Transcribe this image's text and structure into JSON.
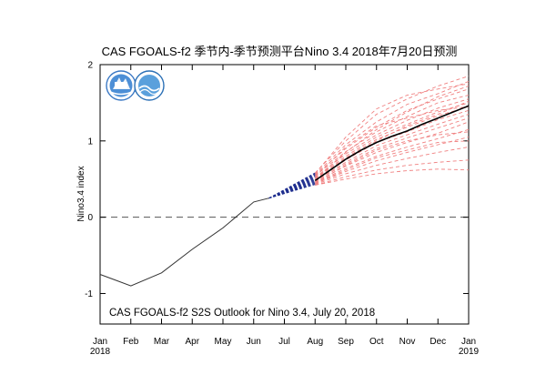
{
  "chart_data": {
    "type": "line",
    "title": "CAS FGOALS-f2 季节内-季节预测平台Nino 3.4 2018年7月20日预测",
    "ylabel": "Nino3.4 index",
    "xlabel": "",
    "annotation": "CAS FGOALS-f2 S2S Outlook for Nino 3.4, July 20, 2018",
    "xlim": [
      0,
      12
    ],
    "ylim": [
      -1.4,
      2
    ],
    "x_ticks": [
      {
        "x": 0,
        "label": "Jan",
        "sublabel": "2018"
      },
      {
        "x": 1,
        "label": "Feb",
        "sublabel": ""
      },
      {
        "x": 2,
        "label": "Mar",
        "sublabel": ""
      },
      {
        "x": 3,
        "label": "Apr",
        "sublabel": ""
      },
      {
        "x": 4,
        "label": "May",
        "sublabel": ""
      },
      {
        "x": 5,
        "label": "Jun",
        "sublabel": ""
      },
      {
        "x": 6,
        "label": "Jul",
        "sublabel": ""
      },
      {
        "x": 7,
        "label": "Aug",
        "sublabel": ""
      },
      {
        "x": 8,
        "label": "Sep",
        "sublabel": ""
      },
      {
        "x": 9,
        "label": "Oct",
        "sublabel": ""
      },
      {
        "x": 10,
        "label": "Nov",
        "sublabel": ""
      },
      {
        "x": 11,
        "label": "Dec",
        "sublabel": ""
      },
      {
        "x": 12,
        "label": "Jan",
        "sublabel": "2019"
      }
    ],
    "y_ticks": [
      2,
      1,
      0,
      -1
    ],
    "reference_line": {
      "y": 0,
      "style": "dashed"
    },
    "colors": {
      "observed": "#333333",
      "ensemble_mean": "#000000",
      "ensemble_member": "#f08080",
      "subseasonal": "#1f2f8f"
    },
    "observed": {
      "x": [
        0,
        1,
        2,
        3,
        4,
        5,
        5.5
      ],
      "y": [
        -0.75,
        -0.9,
        -0.73,
        -0.42,
        -0.14,
        0.2,
        0.25
      ]
    },
    "ensemble_mean": {
      "x": [
        7,
        7.5,
        8,
        8.5,
        9,
        9.5,
        10,
        10.5,
        11,
        11.5,
        12
      ],
      "y": [
        0.48,
        0.62,
        0.76,
        0.88,
        0.98,
        1.06,
        1.13,
        1.22,
        1.3,
        1.38,
        1.46
      ]
    },
    "subseasonal_fan": {
      "x_start": 5.5,
      "y_start": 0.25,
      "x_end": 7.0,
      "y_low": 0.43,
      "y_high": 0.58,
      "members": 12
    },
    "ensemble_members": [
      {
        "x": [
          7,
          8,
          9,
          10,
          11,
          12
        ],
        "y": [
          0.58,
          1.0,
          1.35,
          1.55,
          1.72,
          1.85
        ]
      },
      {
        "x": [
          7,
          8,
          9,
          10,
          11,
          12
        ],
        "y": [
          0.56,
          0.95,
          1.25,
          1.48,
          1.62,
          1.78
        ]
      },
      {
        "x": [
          7,
          8,
          9,
          10,
          11,
          12
        ],
        "y": [
          0.55,
          0.9,
          1.18,
          1.4,
          1.55,
          1.68
        ]
      },
      {
        "x": [
          7,
          8,
          9,
          10,
          11,
          12
        ],
        "y": [
          0.54,
          0.86,
          1.12,
          1.32,
          1.5,
          1.6
        ]
      },
      {
        "x": [
          7,
          8,
          9,
          10,
          11,
          12
        ],
        "y": [
          0.52,
          0.83,
          1.08,
          1.27,
          1.43,
          1.55
        ]
      },
      {
        "x": [
          7,
          8,
          9,
          10,
          11,
          12
        ],
        "y": [
          0.51,
          0.8,
          1.05,
          1.22,
          1.38,
          1.5
        ]
      },
      {
        "x": [
          7,
          8,
          9,
          10,
          11,
          12
        ],
        "y": [
          0.5,
          0.78,
          1.02,
          1.18,
          1.33,
          1.45
        ]
      },
      {
        "x": [
          7,
          8,
          9,
          10,
          11,
          12
        ],
        "y": [
          0.49,
          0.75,
          0.98,
          1.12,
          1.28,
          1.4
        ]
      },
      {
        "x": [
          7,
          8,
          9,
          10,
          11,
          12
        ],
        "y": [
          0.48,
          0.72,
          0.94,
          1.08,
          1.22,
          1.35
        ]
      },
      {
        "x": [
          7,
          8,
          9,
          10,
          11,
          12
        ],
        "y": [
          0.47,
          0.7,
          0.9,
          1.04,
          1.17,
          1.3
        ]
      },
      {
        "x": [
          7,
          8,
          9,
          10,
          11,
          12
        ],
        "y": [
          0.46,
          0.67,
          0.85,
          0.98,
          1.1,
          1.25
        ]
      },
      {
        "x": [
          7,
          8,
          9,
          10,
          11,
          12
        ],
        "y": [
          0.45,
          0.64,
          0.8,
          0.92,
          1.03,
          1.15
        ]
      },
      {
        "x": [
          7,
          8,
          9,
          10,
          11,
          12
        ],
        "y": [
          0.44,
          0.6,
          0.74,
          0.85,
          0.95,
          1.05
        ]
      },
      {
        "x": [
          7,
          8,
          9,
          10,
          11,
          12
        ],
        "y": [
          0.43,
          0.57,
          0.68,
          0.77,
          0.85,
          0.92
        ]
      },
      {
        "x": [
          7,
          8,
          9,
          10,
          11,
          12
        ],
        "y": [
          0.42,
          0.53,
          0.62,
          0.68,
          0.72,
          0.75
        ]
      },
      {
        "x": [
          7,
          8,
          9,
          10,
          11,
          12
        ],
        "y": [
          0.42,
          0.5,
          0.57,
          0.61,
          0.63,
          0.62
        ]
      },
      {
        "x": [
          7,
          8,
          9,
          10,
          11,
          12
        ],
        "y": [
          0.57,
          1.05,
          1.42,
          1.6,
          1.68,
          1.75
        ]
      },
      {
        "x": [
          7,
          8,
          9,
          10,
          11,
          12
        ],
        "y": [
          0.53,
          0.92,
          1.2,
          1.3,
          1.4,
          1.45
        ]
      },
      {
        "x": [
          7,
          8,
          9,
          10,
          11,
          12
        ],
        "y": [
          0.5,
          0.85,
          1.15,
          1.38,
          1.58,
          1.72
        ]
      },
      {
        "x": [
          7,
          8,
          9,
          10,
          11,
          12
        ],
        "y": [
          0.47,
          0.76,
          1.0,
          1.2,
          1.35,
          1.52
        ]
      },
      {
        "x": [
          7,
          8,
          9,
          10,
          11,
          12
        ],
        "y": [
          0.45,
          0.68,
          0.88,
          1.0,
          1.08,
          1.12
        ]
      },
      {
        "x": [
          7,
          8,
          9,
          10,
          11,
          12
        ],
        "y": [
          0.44,
          0.62,
          0.78,
          0.88,
          0.98,
          1.0
        ]
      }
    ]
  }
}
